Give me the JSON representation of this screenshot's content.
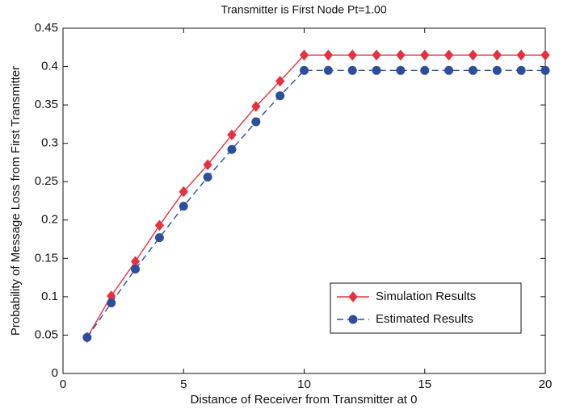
{
  "chart_data": {
    "type": "line",
    "title": "Transmitter is First Node Pt=1.00",
    "xlabel": "Distance of Receiver from Transmitter at 0",
    "ylabel": "Probability of Message Loss from First Transmitter",
    "x": [
      1,
      2,
      3,
      4,
      5,
      6,
      7,
      8,
      9,
      10,
      11,
      12,
      13,
      14,
      15,
      16,
      17,
      18,
      19,
      20
    ],
    "series": [
      {
        "name": "Simulation Results",
        "color": "#e8313f",
        "marker": "diamond",
        "linestyle": "solid",
        "values": [
          0.047,
          0.101,
          0.146,
          0.193,
          0.237,
          0.272,
          0.311,
          0.348,
          0.381,
          0.415,
          0.415,
          0.415,
          0.415,
          0.415,
          0.415,
          0.415,
          0.415,
          0.415,
          0.415,
          0.415
        ]
      },
      {
        "name": "Estimated Results",
        "color": "#2b4f9c",
        "marker": "circle",
        "linestyle": "dashed",
        "values": [
          0.047,
          0.092,
          0.136,
          0.177,
          0.218,
          0.256,
          0.292,
          0.328,
          0.362,
          0.395,
          0.395,
          0.395,
          0.395,
          0.395,
          0.395,
          0.395,
          0.395,
          0.395,
          0.395,
          0.395
        ]
      }
    ],
    "xlim": [
      0,
      20
    ],
    "xticks": [
      0,
      5,
      10,
      15,
      20
    ],
    "ylim": [
      0,
      0.45
    ],
    "yticks": [
      0,
      0.05,
      0.1,
      0.15,
      0.2,
      0.25,
      0.3,
      0.35,
      0.4,
      0.45
    ],
    "grid": false,
    "legend": "lower right"
  }
}
